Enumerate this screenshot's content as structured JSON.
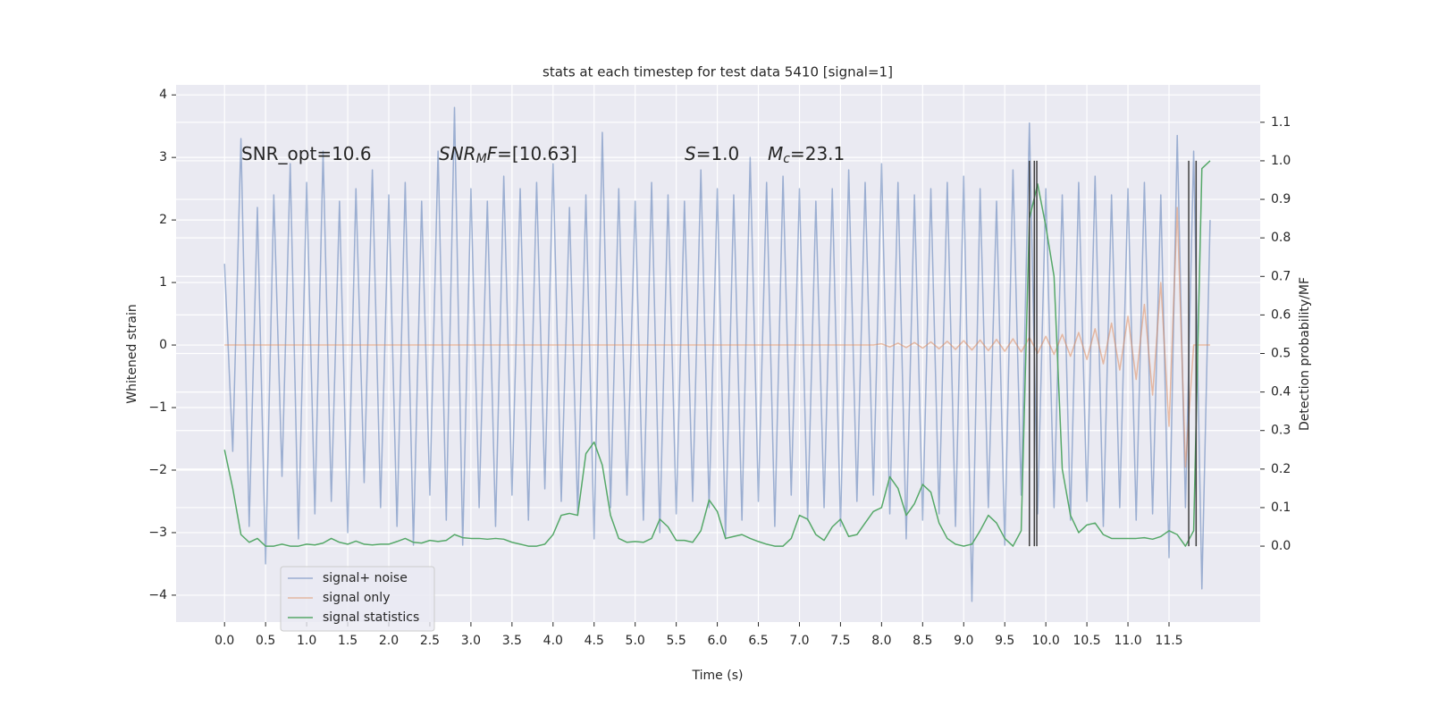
{
  "chart_data": {
    "type": "line",
    "title": "stats at each timestep for test data 5410 [signal=1]",
    "xlabel": "Time (s)",
    "ylabel": "Whitened strain",
    "y2label": "Detection probability/MF",
    "annotations": [
      {
        "segments": [
          {
            "text": "SNR_opt=10.6"
          }
        ]
      },
      {
        "segments": [
          {
            "text": "SNR",
            "italic": true
          },
          {
            "text": "M",
            "italic": true,
            "sub": true
          },
          {
            "text": "F",
            "italic": true
          },
          {
            "text": "=[10.63]"
          }
        ]
      },
      {
        "segments": [
          {
            "text": "S",
            "italic": true
          },
          {
            "text": "=1.0"
          }
        ]
      },
      {
        "segments": [
          {
            "text": "M",
            "italic": true
          },
          {
            "text": "c",
            "italic": true,
            "sub": true
          },
          {
            "text": "=23.1"
          }
        ]
      }
    ],
    "xlim": [
      -0.59,
      12.61
    ],
    "ylim": [
      -4.43,
      4.16
    ],
    "y2lim": [
      -0.197,
      1.197
    ],
    "xticks": [
      {
        "value": 0,
        "label": "0.0"
      },
      {
        "value": 0.5,
        "label": "0.5"
      },
      {
        "value": 1,
        "label": "1.0"
      },
      {
        "value": 1.5,
        "label": "1.5"
      },
      {
        "value": 2,
        "label": "2.0"
      },
      {
        "value": 2.5,
        "label": "2.5"
      },
      {
        "value": 3,
        "label": "3.0"
      },
      {
        "value": 3.5,
        "label": "3.5"
      },
      {
        "value": 4,
        "label": "4.0"
      },
      {
        "value": 4.5,
        "label": "4.5"
      },
      {
        "value": 5,
        "label": "5.0"
      },
      {
        "value": 5.5,
        "label": "5.5"
      },
      {
        "value": 6,
        "label": "6.0"
      },
      {
        "value": 6.5,
        "label": "6.5"
      },
      {
        "value": 7,
        "label": "7.0"
      },
      {
        "value": 7.5,
        "label": "7.5"
      },
      {
        "value": 8,
        "label": "8.0"
      },
      {
        "value": 8.5,
        "label": "8.5"
      },
      {
        "value": 9,
        "label": "9.0"
      },
      {
        "value": 9.5,
        "label": "9.5"
      },
      {
        "value": 10,
        "label": "10.0"
      },
      {
        "value": 10.5,
        "label": "10.5"
      },
      {
        "value": 11,
        "label": "11.0"
      },
      {
        "value": 11.5,
        "label": "11.5"
      }
    ],
    "yticks": [
      {
        "value": -4,
        "label": "−4"
      },
      {
        "value": -3,
        "label": "−3"
      },
      {
        "value": -2,
        "label": "−2"
      },
      {
        "value": -1,
        "label": "−1"
      },
      0,
      1,
      2,
      3,
      4
    ],
    "y2ticks": [
      {
        "value": 0,
        "label": "0.0"
      },
      {
        "value": 0.1,
        "label": "0.1"
      },
      {
        "value": 0.2,
        "label": "0.2"
      },
      {
        "value": 0.3,
        "label": "0.3"
      },
      {
        "value": 0.4,
        "label": "0.4"
      },
      {
        "value": 0.5,
        "label": "0.5"
      },
      {
        "value": 0.6,
        "label": "0.6"
      },
      {
        "value": 0.7,
        "label": "0.7"
      },
      {
        "value": 0.8,
        "label": "0.8"
      },
      {
        "value": 0.9,
        "label": "0.9"
      },
      {
        "value": 1,
        "label": "1.0"
      },
      {
        "value": 1.1,
        "label": "1.1"
      }
    ],
    "grid": true,
    "legend": "lower left",
    "x": [
      0.0,
      0.1,
      0.2,
      0.3,
      0.4,
      0.5,
      0.6,
      0.7,
      0.8,
      0.9,
      1.0,
      1.1,
      1.2,
      1.3,
      1.4,
      1.5,
      1.6,
      1.7,
      1.8,
      1.9,
      2.0,
      2.1,
      2.2,
      2.3,
      2.4,
      2.5,
      2.6,
      2.7,
      2.8,
      2.9,
      3.0,
      3.1,
      3.2,
      3.3,
      3.4,
      3.5,
      3.6,
      3.7,
      3.8,
      3.9,
      4.0,
      4.1,
      4.2,
      4.3,
      4.4,
      4.5,
      4.6,
      4.7,
      4.8,
      4.9,
      5.0,
      5.1,
      5.2,
      5.3,
      5.4,
      5.5,
      5.6,
      5.7,
      5.8,
      5.9,
      6.0,
      6.1,
      6.2,
      6.3,
      6.4,
      6.5,
      6.6,
      6.7,
      6.8,
      6.9,
      7.0,
      7.1,
      7.2,
      7.3,
      7.4,
      7.5,
      7.6,
      7.7,
      7.8,
      7.9,
      8.0,
      8.1,
      8.2,
      8.3,
      8.4,
      8.5,
      8.6,
      8.7,
      8.8,
      8.9,
      9.0,
      9.1,
      9.2,
      9.3,
      9.4,
      9.5,
      9.6,
      9.7,
      9.8,
      9.9,
      10.0,
      10.1,
      10.2,
      10.3,
      10.4,
      10.5,
      10.6,
      10.7,
      10.8,
      10.9,
      11.0,
      11.1,
      11.2,
      11.3,
      11.4,
      11.5,
      11.6,
      11.7,
      11.8,
      11.9,
      12.0
    ],
    "series": [
      {
        "name": "signal+ noise",
        "color": "#4c72b0",
        "alpha": 0.5,
        "axis": "y",
        "values": [
          1.3,
          -1.7,
          3.3,
          -2.9,
          2.2,
          -3.5,
          2.4,
          -2.1,
          2.9,
          -3.1,
          2.6,
          -2.7,
          3.1,
          -2.5,
          2.3,
          -3.0,
          2.5,
          -2.2,
          2.8,
          -2.6,
          2.4,
          -2.9,
          2.6,
          -3.2,
          2.3,
          -2.4,
          3.1,
          -2.8,
          3.8,
          -3.2,
          2.5,
          -2.6,
          2.3,
          -2.9,
          2.7,
          -2.4,
          2.5,
          -2.8,
          2.6,
          -2.3,
          2.9,
          -2.5,
          2.2,
          -2.7,
          2.4,
          -3.1,
          3.4,
          -2.6,
          2.5,
          -2.4,
          2.3,
          -2.8,
          2.6,
          -3.0,
          2.4,
          -2.7,
          2.3,
          -2.5,
          2.8,
          -2.6,
          2.5,
          -3.1,
          2.4,
          -2.8,
          3.0,
          -2.5,
          2.6,
          -2.9,
          2.7,
          -2.4,
          2.5,
          -2.8,
          2.3,
          -2.6,
          2.5,
          -2.9,
          2.8,
          -2.5,
          2.6,
          -2.4,
          2.9,
          -2.7,
          2.6,
          -3.1,
          2.4,
          -2.8,
          2.5,
          -2.7,
          2.6,
          -2.9,
          2.7,
          -4.1,
          2.5,
          -2.6,
          2.3,
          -3.2,
          2.8,
          -2.4,
          3.55,
          -2.7,
          2.5,
          -2.6,
          2.4,
          -2.8,
          2.6,
          -2.5,
          2.7,
          -2.9,
          2.4,
          -2.6,
          2.5,
          -2.8,
          2.6,
          -2.7,
          2.4,
          -3.4,
          3.35,
          -2.6,
          3.1,
          -3.9,
          2.0
        ]
      },
      {
        "name": "signal only",
        "color": "#dd8452",
        "alpha": 0.5,
        "axis": "y",
        "values": [
          0,
          0,
          0,
          0,
          0,
          0,
          0,
          0,
          0,
          0,
          0,
          0,
          0,
          0,
          0,
          0,
          0,
          0,
          0,
          0,
          0,
          0,
          0,
          0,
          0,
          0,
          0,
          0,
          0,
          0,
          0,
          0,
          0,
          0,
          0,
          0,
          0,
          0,
          0,
          0,
          0,
          0,
          0,
          0,
          0,
          0,
          0,
          0,
          0,
          0,
          0,
          0,
          0,
          0,
          0,
          0,
          0,
          0,
          0,
          0,
          0,
          0,
          0,
          0,
          0,
          0,
          0,
          0,
          0,
          0,
          0,
          0,
          0,
          0,
          0,
          0,
          0,
          0,
          0,
          0,
          0.02,
          -0.03,
          0.03,
          -0.04,
          0.04,
          -0.05,
          0.05,
          -0.06,
          0.06,
          -0.07,
          0.07,
          -0.08,
          0.08,
          -0.09,
          0.09,
          -0.1,
          0.1,
          -0.11,
          0.12,
          -0.13,
          0.14,
          -0.15,
          0.17,
          -0.18,
          0.2,
          -0.23,
          0.26,
          -0.3,
          0.35,
          -0.4,
          0.46,
          -0.55,
          0.65,
          -0.8,
          1.0,
          -1.3,
          2.2,
          -1.95,
          0,
          0,
          0
        ]
      },
      {
        "name": "signal statistics",
        "color": "#55a868",
        "alpha": 1,
        "axis": "y2",
        "values": [
          0.25,
          0.15,
          0.03,
          0.01,
          0.02,
          0.0,
          0.0,
          0.005,
          0.0,
          0.0,
          0.005,
          0.003,
          0.008,
          0.02,
          0.01,
          0.005,
          0.013,
          0.005,
          0.003,
          0.005,
          0.005,
          0.012,
          0.02,
          0.01,
          0.008,
          0.015,
          0.012,
          0.015,
          0.03,
          0.022,
          0.02,
          0.02,
          0.018,
          0.02,
          0.018,
          0.01,
          0.005,
          0.0,
          0.0,
          0.005,
          0.03,
          0.08,
          0.085,
          0.08,
          0.24,
          0.27,
          0.21,
          0.08,
          0.02,
          0.01,
          0.012,
          0.01,
          0.02,
          0.07,
          0.05,
          0.015,
          0.015,
          0.01,
          0.04,
          0.12,
          0.09,
          0.02,
          0.025,
          0.03,
          0.02,
          0.012,
          0.005,
          0.0,
          0.0,
          0.02,
          0.08,
          0.07,
          0.03,
          0.015,
          0.05,
          0.07,
          0.025,
          0.03,
          0.06,
          0.09,
          0.1,
          0.18,
          0.15,
          0.08,
          0.11,
          0.16,
          0.14,
          0.06,
          0.02,
          0.005,
          0.0,
          0.005,
          0.04,
          0.08,
          0.06,
          0.02,
          0.0,
          0.04,
          0.85,
          0.94,
          0.83,
          0.7,
          0.2,
          0.08,
          0.035,
          0.055,
          0.06,
          0.03,
          0.02,
          0.02,
          0.02,
          0.02,
          0.022,
          0.018,
          0.025,
          0.04,
          0.03,
          0.0,
          0.04,
          0.98,
          1.0
        ]
      }
    ],
    "vlines": {
      "x": [
        9.8,
        9.86,
        9.89,
        11.74,
        11.83
      ],
      "ymin": 0,
      "ymax": 1,
      "axis": "y2",
      "color": "#3f3f3f"
    }
  }
}
